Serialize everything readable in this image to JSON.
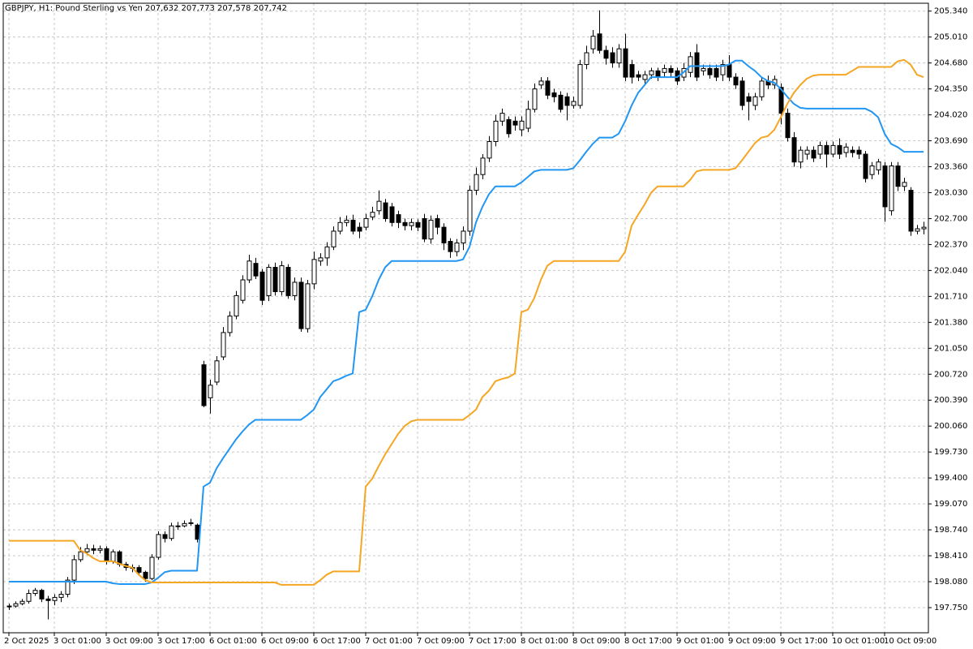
{
  "chart_data": {
    "type": "candlestick",
    "title": "GBPJPY, H1: Pound Sterling vs Yen 207,632 207,773 207,578 207,742",
    "xlim": [
      -0.875,
      141.75
    ],
    "xticks": [
      {
        "value": 0,
        "label": "2 Oct 2025"
      },
      {
        "value": 7,
        "label": "3 Oct 01:00"
      },
      {
        "value": 15,
        "label": "3 Oct 09:00"
      },
      {
        "value": 23,
        "label": "3 Oct 17:00"
      },
      {
        "value": 31,
        "label": "6 Oct 01:00"
      },
      {
        "value": 39,
        "label": "6 Oct 09:00"
      },
      {
        "value": 47,
        "label": "6 Oct 17:00"
      },
      {
        "value": 55,
        "label": "7 Oct 01:00"
      },
      {
        "value": 63,
        "label": "7 Oct 09:00"
      },
      {
        "value": 71,
        "label": "7 Oct 17:00"
      },
      {
        "value": 79,
        "label": "8 Oct 01:00"
      },
      {
        "value": 87,
        "label": "8 Oct 09:00"
      },
      {
        "value": 95,
        "label": "8 Oct 17:00"
      },
      {
        "value": 103,
        "label": "9 Oct 01:00"
      },
      {
        "value": 111,
        "label": "9 Oct 09:00"
      },
      {
        "value": 119,
        "label": "9 Oct 17:00"
      },
      {
        "value": 127,
        "label": "10 Oct 01:00"
      },
      {
        "value": 135,
        "label": "10 Oct 09:00"
      }
    ],
    "ylim": [
      197.43,
      205.44
    ],
    "yticks": [
      {
        "value": 205.34,
        "label": "205.340"
      },
      {
        "value": 205.01,
        "label": "205.010"
      },
      {
        "value": 204.68,
        "label": "204.680"
      },
      {
        "value": 204.35,
        "label": "204.350"
      },
      {
        "value": 204.02,
        "label": "204.020"
      },
      {
        "value": 203.69,
        "label": "203.690"
      },
      {
        "value": 203.36,
        "label": "203.360"
      },
      {
        "value": 203.03,
        "label": "203.030"
      },
      {
        "value": 202.7,
        "label": "202.700"
      },
      {
        "value": 202.37,
        "label": "202.370"
      },
      {
        "value": 202.04,
        "label": "202.040"
      },
      {
        "value": 201.71,
        "label": "201.710"
      },
      {
        "value": 201.38,
        "label": "201.380"
      },
      {
        "value": 201.05,
        "label": "201.050"
      },
      {
        "value": 200.72,
        "label": "200.720"
      },
      {
        "value": 200.39,
        "label": "200.390"
      },
      {
        "value": 200.06,
        "label": "200.060"
      },
      {
        "value": 199.73,
        "label": "199.730"
      },
      {
        "value": 199.4,
        "label": "199.400"
      },
      {
        "value": 199.07,
        "label": "199.070"
      },
      {
        "value": 198.74,
        "label": "198.740"
      },
      {
        "value": 198.41,
        "label": "198.410"
      },
      {
        "value": 198.08,
        "label": "198.080"
      },
      {
        "value": 197.75,
        "label": "197.750"
      }
    ],
    "grid": true,
    "candle_colors": {
      "up": "#ffffff",
      "down": "#000000",
      "outline": "#000000"
    },
    "ohlc": {
      "open": [
        197.76,
        197.77,
        197.8,
        197.83,
        197.93,
        197.97,
        197.86,
        197.84,
        197.88,
        197.92,
        198.1,
        198.36,
        198.46,
        198.5,
        198.48,
        198.5,
        198.34,
        198.46,
        198.3,
        198.26,
        198.26,
        198.2,
        198.12,
        198.39,
        198.68,
        198.63,
        198.79,
        198.79,
        198.82,
        198.8,
        200.84,
        200.42,
        200.62,
        200.94,
        201.25,
        201.46,
        201.66,
        201.92,
        202.13,
        202.02,
        201.72,
        202.08,
        201.77,
        202.08,
        201.72,
        201.89,
        201.3,
        201.87,
        202.16,
        202.2,
        202.34,
        202.54,
        202.65,
        202.68,
        202.59,
        202.59,
        202.72,
        202.8,
        202.9,
        202.85,
        202.75,
        202.65,
        202.61,
        202.65,
        202.7,
        202.44,
        202.7,
        202.59,
        202.41,
        202.28,
        202.39,
        202.54,
        203.06,
        203.26,
        203.47,
        203.68,
        203.94,
        203.96,
        203.94,
        203.83,
        203.85,
        204.09,
        204.4,
        204.45,
        204.3,
        204.27,
        204.25,
        204.14,
        204.14,
        204.66,
        204.86,
        205.05,
        204.84,
        204.81,
        204.68,
        204.86,
        204.66,
        204.53,
        204.47,
        204.53,
        204.58,
        204.56,
        204.61,
        204.58,
        204.5,
        204.56,
        204.81,
        204.58,
        204.61,
        204.61,
        204.53,
        204.66,
        204.5,
        204.45,
        204.25,
        204.14,
        204.25,
        204.45,
        204.4,
        204.37,
        204.04,
        203.73,
        203.42,
        203.52,
        203.57,
        203.52,
        203.63,
        203.52,
        203.63,
        203.54,
        203.57,
        203.57,
        203.52,
        203.26,
        203.32,
        203.37,
        202.8,
        203.37,
        203.11,
        203.06,
        202.54,
        202.57
      ],
      "high": [
        197.8,
        197.83,
        197.86,
        197.98,
        198.0,
        197.99,
        197.9,
        197.92,
        197.96,
        198.14,
        198.42,
        198.52,
        198.56,
        198.55,
        198.54,
        198.53,
        198.49,
        198.48,
        198.33,
        198.3,
        198.29,
        198.22,
        198.43,
        198.72,
        198.72,
        198.83,
        198.84,
        198.86,
        198.88,
        198.82,
        200.89,
        200.65,
        200.95,
        201.32,
        201.52,
        201.78,
        201.98,
        202.24,
        202.2,
        202.06,
        202.12,
        202.14,
        202.16,
        202.12,
        201.95,
        201.95,
        201.92,
        202.28,
        202.26,
        202.4,
        202.6,
        202.72,
        202.74,
        202.75,
        202.65,
        202.76,
        202.85,
        203.06,
        202.95,
        202.9,
        202.8,
        202.7,
        202.7,
        202.69,
        202.76,
        202.74,
        202.75,
        202.64,
        202.45,
        202.44,
        202.6,
        203.12,
        203.35,
        203.52,
        203.75,
        204.02,
        204.1,
        204.0,
        204.0,
        204.0,
        204.2,
        204.42,
        204.5,
        204.5,
        204.35,
        204.32,
        204.3,
        204.25,
        204.72,
        204.9,
        205.1,
        205.35,
        204.9,
        204.88,
        204.92,
        205.05,
        204.72,
        204.58,
        204.58,
        204.62,
        204.62,
        204.66,
        204.65,
        204.62,
        204.68,
        204.82,
        204.92,
        204.66,
        204.66,
        204.66,
        204.72,
        204.78,
        204.55,
        204.5,
        204.3,
        204.3,
        204.5,
        204.52,
        204.52,
        204.42,
        204.1,
        203.8,
        203.62,
        203.62,
        203.62,
        203.68,
        203.68,
        203.68,
        203.72,
        203.66,
        203.62,
        203.62,
        203.56,
        203.42,
        203.46,
        203.42,
        203.42,
        203.42,
        203.22,
        203.1,
        202.62,
        202.66
      ],
      "low": [
        197.72,
        197.75,
        197.78,
        197.8,
        197.9,
        197.82,
        197.6,
        197.78,
        197.82,
        197.88,
        198.05,
        198.33,
        198.42,
        198.43,
        198.44,
        198.3,
        198.31,
        198.27,
        198.22,
        198.2,
        198.16,
        198.08,
        198.1,
        198.36,
        198.58,
        198.6,
        198.74,
        198.77,
        198.79,
        198.58,
        200.3,
        200.22,
        200.58,
        200.9,
        201.2,
        201.42,
        201.62,
        201.88,
        201.93,
        201.6,
        201.65,
        201.72,
        201.72,
        201.68,
        201.66,
        201.26,
        201.25,
        201.8,
        202.1,
        202.1,
        202.3,
        202.5,
        202.6,
        202.5,
        202.45,
        202.55,
        202.68,
        202.75,
        202.66,
        202.6,
        202.58,
        202.55,
        202.55,
        202.54,
        202.4,
        202.38,
        202.5,
        202.3,
        202.2,
        202.22,
        202.3,
        202.48,
        203.0,
        203.2,
        203.42,
        203.62,
        203.88,
        203.73,
        203.82,
        203.75,
        203.8,
        204.05,
        204.35,
        204.22,
        204.18,
        204.05,
        203.95,
        204.1,
        204.1,
        204.6,
        204.8,
        204.8,
        204.66,
        204.62,
        204.62,
        204.45,
        204.42,
        204.45,
        204.4,
        204.48,
        204.45,
        204.5,
        204.5,
        204.4,
        204.45,
        204.5,
        204.45,
        204.52,
        204.48,
        204.45,
        204.45,
        204.45,
        204.35,
        204.08,
        203.95,
        204.08,
        204.2,
        204.35,
        204.35,
        203.9,
        203.68,
        203.36,
        203.34,
        203.45,
        203.42,
        203.46,
        203.35,
        203.48,
        203.46,
        203.48,
        203.48,
        203.46,
        203.16,
        203.2,
        203.26,
        202.66,
        202.74,
        203.05,
        203.05,
        202.48,
        202.5,
        202.5
      ],
      "close": [
        197.77,
        197.8,
        197.83,
        197.93,
        197.97,
        197.86,
        197.84,
        197.88,
        197.92,
        198.1,
        198.36,
        198.46,
        198.5,
        198.48,
        198.5,
        198.34,
        198.46,
        198.3,
        198.26,
        198.26,
        198.2,
        198.12,
        198.39,
        198.68,
        198.63,
        198.79,
        198.79,
        198.82,
        198.83,
        198.62,
        200.32,
        200.58,
        200.89,
        201.25,
        201.46,
        201.72,
        201.92,
        202.16,
        201.97,
        201.66,
        202.08,
        201.77,
        202.1,
        201.72,
        201.89,
        201.3,
        201.87,
        202.18,
        202.2,
        202.34,
        202.54,
        202.65,
        202.68,
        202.54,
        202.54,
        202.7,
        202.78,
        202.92,
        202.7,
        202.65,
        202.65,
        202.61,
        202.65,
        202.59,
        202.44,
        202.68,
        202.59,
        202.39,
        202.28,
        202.39,
        202.54,
        203.06,
        203.26,
        203.47,
        203.68,
        203.94,
        204.04,
        203.78,
        203.89,
        203.94,
        204.09,
        204.35,
        204.45,
        204.27,
        204.25,
        204.09,
        204.14,
        204.19,
        204.66,
        204.81,
        205.02,
        204.84,
        204.74,
        204.68,
        204.86,
        204.5,
        204.5,
        204.5,
        204.53,
        204.58,
        204.5,
        204.61,
        204.56,
        204.45,
        204.61,
        204.76,
        204.5,
        204.61,
        204.53,
        204.5,
        204.66,
        204.5,
        204.4,
        204.14,
        204.19,
        204.25,
        204.45,
        204.4,
        204.47,
        204.04,
        203.73,
        203.42,
        203.57,
        203.57,
        203.47,
        203.63,
        203.52,
        203.63,
        203.52,
        203.61,
        203.54,
        203.52,
        203.21,
        203.37,
        203.42,
        202.85,
        203.37,
        203.11,
        203.16,
        202.54,
        202.57,
        202.59
      ]
    },
    "lines": [
      {
        "color": "#2196f3",
        "values": [
          198.08,
          198.08,
          198.08,
          198.08,
          198.08,
          198.08,
          198.08,
          198.08,
          198.08,
          198.08,
          198.08,
          198.08,
          198.08,
          198.08,
          198.08,
          198.08,
          198.06,
          198.05,
          198.05,
          198.05,
          198.05,
          198.05,
          198.07,
          198.13,
          198.2,
          198.22,
          198.22,
          198.22,
          198.22,
          198.22,
          199.29,
          199.34,
          199.52,
          199.65,
          199.77,
          199.89,
          199.99,
          200.08,
          200.14,
          200.14,
          200.14,
          200.14,
          200.14,
          200.14,
          200.14,
          200.14,
          200.2,
          200.27,
          200.43,
          200.53,
          200.63,
          200.66,
          200.7,
          200.73,
          201.51,
          201.54,
          201.71,
          201.92,
          202.08,
          202.16,
          202.16,
          202.16,
          202.16,
          202.16,
          202.16,
          202.16,
          202.16,
          202.16,
          202.16,
          202.16,
          202.18,
          202.34,
          202.65,
          202.85,
          203.01,
          203.11,
          203.11,
          203.11,
          203.11,
          203.16,
          203.23,
          203.3,
          203.32,
          203.32,
          203.32,
          203.32,
          203.32,
          203.34,
          203.44,
          203.55,
          203.65,
          203.73,
          203.73,
          203.73,
          203.78,
          203.94,
          204.14,
          204.3,
          204.4,
          204.5,
          204.5,
          204.5,
          204.5,
          204.5,
          204.56,
          204.64,
          204.64,
          204.64,
          204.64,
          204.64,
          204.64,
          204.66,
          204.71,
          204.71,
          204.64,
          204.58,
          204.5,
          204.45,
          204.43,
          204.35,
          204.25,
          204.16,
          204.11,
          204.1,
          204.1,
          204.1,
          204.1,
          204.1,
          204.1,
          204.1,
          204.1,
          204.1,
          204.1,
          204.06,
          203.99,
          203.78,
          203.65,
          203.61,
          203.55,
          203.55,
          203.55,
          203.55
        ]
      },
      {
        "color": "#f5a623",
        "values": [
          198.6,
          198.6,
          198.6,
          198.6,
          198.6,
          198.6,
          198.6,
          198.6,
          198.6,
          198.6,
          198.6,
          198.48,
          198.44,
          198.38,
          198.34,
          198.34,
          198.34,
          198.31,
          198.28,
          198.26,
          198.17,
          198.1,
          198.07,
          198.07,
          198.07,
          198.07,
          198.07,
          198.07,
          198.07,
          198.07,
          198.07,
          198.07,
          198.07,
          198.07,
          198.07,
          198.07,
          198.07,
          198.07,
          198.07,
          198.07,
          198.07,
          198.07,
          198.04,
          198.04,
          198.04,
          198.04,
          198.04,
          198.04,
          198.1,
          198.17,
          198.21,
          198.21,
          198.21,
          198.21,
          198.21,
          199.29,
          199.39,
          199.55,
          199.7,
          199.83,
          199.96,
          200.06,
          200.12,
          200.14,
          200.14,
          200.14,
          200.14,
          200.14,
          200.14,
          200.14,
          200.14,
          200.2,
          200.27,
          200.43,
          200.51,
          200.63,
          200.66,
          200.68,
          200.73,
          201.51,
          201.54,
          201.69,
          201.92,
          202.1,
          202.16,
          202.16,
          202.16,
          202.16,
          202.16,
          202.16,
          202.16,
          202.16,
          202.16,
          202.16,
          202.16,
          202.28,
          202.61,
          202.75,
          202.88,
          203.03,
          203.11,
          203.11,
          203.11,
          203.11,
          203.11,
          203.19,
          203.3,
          203.32,
          203.32,
          203.32,
          203.32,
          203.32,
          203.34,
          203.44,
          203.55,
          203.66,
          203.73,
          203.75,
          203.83,
          203.99,
          204.16,
          204.3,
          204.4,
          204.48,
          204.52,
          204.53,
          204.53,
          204.53,
          204.53,
          204.53,
          204.58,
          204.63,
          204.63,
          204.63,
          204.63,
          204.63,
          204.63,
          204.7,
          204.72,
          204.66,
          204.53,
          204.5
        ]
      }
    ]
  }
}
